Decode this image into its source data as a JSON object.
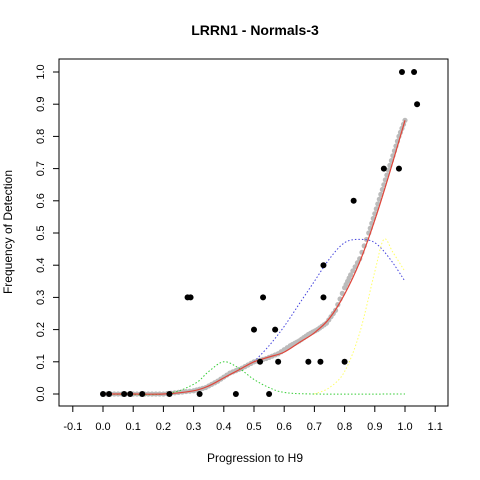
{
  "chart_data": {
    "type": "scatter",
    "title": "LRRN1 - Normals-3",
    "xlabel": "Progression to H9",
    "ylabel": "Frequency of Detection",
    "xlim": [
      -0.1,
      1.1
    ],
    "ylim": [
      0.0,
      1.0
    ],
    "xticks": [
      "-0.1",
      "0.0",
      "0.1",
      "0.2",
      "0.3",
      "0.4",
      "0.5",
      "0.6",
      "0.7",
      "0.8",
      "0.9",
      "1.0",
      "1.1"
    ],
    "yticks": [
      "0.0",
      "0.1",
      "0.2",
      "0.3",
      "0.4",
      "0.5",
      "0.6",
      "0.7",
      "0.8",
      "0.9",
      "1.0"
    ],
    "grid": false,
    "legend": "none",
    "series": [
      {
        "kind": "points",
        "color": "#000000",
        "points": [
          [
            0.0,
            0.0
          ],
          [
            0.02,
            0.0
          ],
          [
            0.07,
            0.0
          ],
          [
            0.09,
            0.0
          ],
          [
            0.13,
            0.0
          ],
          [
            0.22,
            0.0
          ],
          [
            0.32,
            0.0
          ],
          [
            0.44,
            0.0
          ],
          [
            0.55,
            0.0
          ],
          [
            0.28,
            0.3
          ],
          [
            0.29,
            0.3
          ],
          [
            0.53,
            0.3
          ],
          [
            0.73,
            0.3
          ],
          [
            0.5,
            0.2
          ],
          [
            0.57,
            0.2
          ],
          [
            0.52,
            0.1
          ],
          [
            0.58,
            0.1
          ],
          [
            0.68,
            0.1
          ],
          [
            0.72,
            0.1
          ],
          [
            0.8,
            0.1
          ],
          [
            0.73,
            0.4
          ],
          [
            0.83,
            0.6
          ],
          [
            0.93,
            0.7
          ],
          [
            0.98,
            0.7
          ],
          [
            0.99,
            1.0
          ],
          [
            1.03,
            1.0
          ],
          [
            1.04,
            0.9
          ]
        ]
      },
      {
        "kind": "smooth-points",
        "color": "#bbbbbb",
        "points": [
          [
            0.0,
            0.0
          ],
          [
            0.05,
            0.0
          ],
          [
            0.1,
            0.0
          ],
          [
            0.15,
            0.0
          ],
          [
            0.2,
            0.0
          ],
          [
            0.25,
            0.005
          ],
          [
            0.3,
            0.01
          ],
          [
            0.34,
            0.02
          ],
          [
            0.38,
            0.04
          ],
          [
            0.42,
            0.065
          ],
          [
            0.46,
            0.08
          ],
          [
            0.5,
            0.1
          ],
          [
            0.54,
            0.11
          ],
          [
            0.58,
            0.125
          ],
          [
            0.62,
            0.15
          ],
          [
            0.65,
            0.165
          ],
          [
            0.68,
            0.185
          ],
          [
            0.71,
            0.2
          ],
          [
            0.74,
            0.22
          ],
          [
            0.77,
            0.26
          ],
          [
            0.8,
            0.33
          ],
          [
            0.82,
            0.37
          ],
          [
            0.85,
            0.42
          ],
          [
            0.88,
            0.5
          ],
          [
            0.9,
            0.56
          ],
          [
            0.92,
            0.62
          ],
          [
            0.94,
            0.68
          ],
          [
            0.96,
            0.74
          ],
          [
            0.98,
            0.8
          ],
          [
            1.0,
            0.85
          ]
        ]
      },
      {
        "kind": "line",
        "color": "#e0453a",
        "points": [
          [
            0.0,
            0.0
          ],
          [
            0.1,
            0.0
          ],
          [
            0.2,
            0.0
          ],
          [
            0.3,
            0.01
          ],
          [
            0.35,
            0.025
          ],
          [
            0.4,
            0.05
          ],
          [
            0.45,
            0.075
          ],
          [
            0.5,
            0.1
          ],
          [
            0.55,
            0.115
          ],
          [
            0.6,
            0.13
          ],
          [
            0.65,
            0.16
          ],
          [
            0.7,
            0.19
          ],
          [
            0.75,
            0.235
          ],
          [
            0.8,
            0.31
          ],
          [
            0.85,
            0.41
          ],
          [
            0.9,
            0.54
          ],
          [
            0.95,
            0.69
          ],
          [
            1.0,
            0.85
          ]
        ]
      },
      {
        "kind": "dotted-line",
        "color": "#33cc33",
        "points": [
          [
            0.0,
            0.0
          ],
          [
            0.2,
            0.0
          ],
          [
            0.3,
            0.03
          ],
          [
            0.35,
            0.07
          ],
          [
            0.4,
            0.1
          ],
          [
            0.45,
            0.08
          ],
          [
            0.5,
            0.045
          ],
          [
            0.55,
            0.02
          ],
          [
            0.6,
            0.005
          ],
          [
            0.7,
            0.0
          ],
          [
            1.0,
            0.0
          ]
        ]
      },
      {
        "kind": "dotted-line",
        "color": "#4444dd",
        "points": [
          [
            0.5,
            0.1
          ],
          [
            0.55,
            0.15
          ],
          [
            0.6,
            0.21
          ],
          [
            0.65,
            0.28
          ],
          [
            0.7,
            0.35
          ],
          [
            0.75,
            0.42
          ],
          [
            0.8,
            0.47
          ],
          [
            0.85,
            0.48
          ],
          [
            0.9,
            0.47
          ],
          [
            0.95,
            0.42
          ],
          [
            1.0,
            0.35
          ]
        ]
      },
      {
        "kind": "dotted-line",
        "color": "#ffff66",
        "points": [
          [
            0.7,
            0.0
          ],
          [
            0.75,
            0.02
          ],
          [
            0.8,
            0.07
          ],
          [
            0.85,
            0.19
          ],
          [
            0.9,
            0.38
          ],
          [
            0.93,
            0.48
          ],
          [
            0.96,
            0.44
          ],
          [
            1.0,
            0.38
          ]
        ]
      }
    ]
  }
}
